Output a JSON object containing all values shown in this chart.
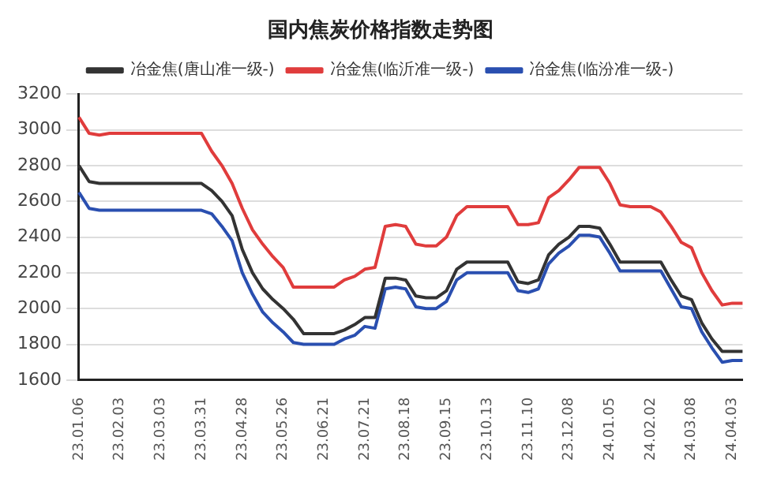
{
  "chart_data": {
    "type": "line",
    "title": "国内焦炭价格指数走势图",
    "categories": [
      "23.01.06",
      null,
      null,
      null,
      "23.02.03",
      null,
      null,
      null,
      "23.03.03",
      null,
      null,
      null,
      "23.03.31",
      null,
      null,
      null,
      "23.04.28",
      null,
      null,
      null,
      "23.05.26",
      null,
      null,
      null,
      "23.06.21",
      null,
      null,
      null,
      "23.07.21",
      null,
      null,
      null,
      "23.08.18",
      null,
      null,
      null,
      "23.09.15",
      null,
      null,
      null,
      "23.10.13",
      null,
      null,
      null,
      "23.11.10",
      null,
      null,
      null,
      "23.12.08",
      null,
      null,
      null,
      "24.01.05",
      null,
      null,
      null,
      "24.02.02",
      null,
      null,
      null,
      "24.03.08",
      null,
      null,
      null,
      "24.04.03",
      null
    ],
    "series": [
      {
        "name": "冶金焦(唐山准一级-)",
        "color": "#333333",
        "values": [
          2800,
          2710,
          2700,
          2700,
          2700,
          2700,
          2700,
          2700,
          2700,
          2700,
          2700,
          2700,
          2700,
          2660,
          2600,
          2520,
          2330,
          2200,
          2110,
          2050,
          2000,
          1940,
          1860,
          1860,
          1860,
          1860,
          1880,
          1910,
          1950,
          1950,
          2170,
          2170,
          2160,
          2070,
          2060,
          2060,
          2100,
          2220,
          2260,
          2260,
          2260,
          2260,
          2260,
          2150,
          2140,
          2160,
          2300,
          2360,
          2400,
          2460,
          2460,
          2450,
          2360,
          2260,
          2260,
          2260,
          2260,
          2260,
          2160,
          2070,
          2050,
          1920,
          1830,
          1760,
          1760,
          1760
        ]
      },
      {
        "name": "冶金焦(临沂准一级-)",
        "color": "#e03c3c",
        "values": [
          3070,
          2980,
          2970,
          2980,
          2980,
          2980,
          2980,
          2980,
          2980,
          2980,
          2980,
          2980,
          2980,
          2880,
          2800,
          2700,
          2560,
          2440,
          2360,
          2290,
          2230,
          2120,
          2120,
          2120,
          2120,
          2120,
          2160,
          2180,
          2220,
          2230,
          2460,
          2470,
          2460,
          2360,
          2350,
          2350,
          2400,
          2520,
          2570,
          2570,
          2570,
          2570,
          2570,
          2470,
          2470,
          2480,
          2620,
          2660,
          2720,
          2790,
          2790,
          2790,
          2700,
          2580,
          2570,
          2570,
          2570,
          2540,
          2460,
          2370,
          2340,
          2200,
          2100,
          2020,
          2030,
          2030
        ]
      },
      {
        "name": "冶金焦(临汾准一级-)",
        "color": "#2a4fb0",
        "values": [
          2650,
          2560,
          2550,
          2550,
          2550,
          2550,
          2550,
          2550,
          2550,
          2550,
          2550,
          2550,
          2550,
          2530,
          2460,
          2380,
          2200,
          2080,
          1980,
          1920,
          1870,
          1810,
          1800,
          1800,
          1800,
          1800,
          1830,
          1850,
          1900,
          1890,
          2110,
          2120,
          2110,
          2010,
          2000,
          2000,
          2040,
          2160,
          2200,
          2200,
          2200,
          2200,
          2200,
          2100,
          2090,
          2110,
          2250,
          2310,
          2350,
          2410,
          2410,
          2400,
          2310,
          2210,
          2210,
          2210,
          2210,
          2210,
          2110,
          2010,
          2000,
          1870,
          1780,
          1700,
          1710,
          1710
        ]
      }
    ],
    "ylim": [
      1600,
      3200
    ],
    "yticks": [
      1600,
      1800,
      2000,
      2200,
      2400,
      2600,
      2800,
      3000,
      3200
    ],
    "grid": "y",
    "legend": "top",
    "marker": "none",
    "line_style": "solid"
  }
}
